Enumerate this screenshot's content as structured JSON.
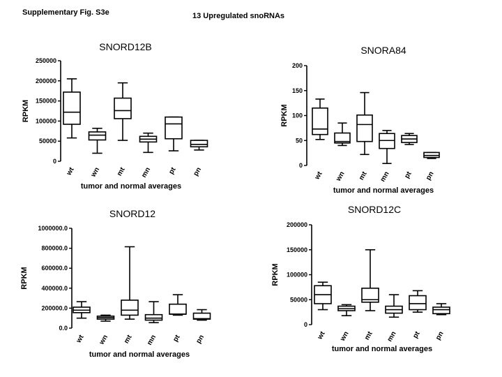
{
  "figure_label": "Supplementary Fig. S3e",
  "heading": "13  Upregulated snoRNAs",
  "chart_data": [
    {
      "type": "box",
      "title": "SNORD12B",
      "xlabel": "tumor and normal averages",
      "ylabel": "RPKM",
      "ylim": [
        0,
        250000
      ],
      "yticks": [
        "0",
        "50000",
        "100000",
        "150000",
        "200000",
        "250000"
      ],
      "categories": [
        "wt",
        "wn",
        "mt",
        "mn",
        "pt",
        "pn"
      ],
      "boxes": [
        {
          "min": 58000,
          "q1": 92000,
          "median": 122000,
          "q3": 172000,
          "max": 205000
        },
        {
          "min": 20000,
          "q1": 53000,
          "median": 65000,
          "q3": 73000,
          "max": 82000
        },
        {
          "min": 52000,
          "q1": 106000,
          "median": 126000,
          "q3": 157000,
          "max": 195000
        },
        {
          "min": 22000,
          "q1": 48000,
          "median": 55000,
          "q3": 62000,
          "max": 70000
        },
        {
          "min": 26000,
          "q1": 56000,
          "median": 93000,
          "q3": 110000,
          "max": 110000
        },
        {
          "min": 28000,
          "q1": 36000,
          "median": 42000,
          "q3": 52000,
          "max": 52000
        }
      ]
    },
    {
      "type": "box",
      "title": "SNORA84",
      "xlabel": "tumor and normal averages",
      "ylabel": "RPKM",
      "ylim": [
        0,
        200
      ],
      "yticks": [
        "0",
        "50",
        "100",
        "150",
        "200"
      ],
      "categories": [
        "wt",
        "wn",
        "mt",
        "mn",
        "pt",
        "pn"
      ],
      "boxes": [
        {
          "min": 52,
          "q1": 62,
          "median": 73,
          "q3": 115,
          "max": 133
        },
        {
          "min": 40,
          "q1": 45,
          "median": 48,
          "q3": 65,
          "max": 85
        },
        {
          "min": 22,
          "q1": 48,
          "median": 82,
          "q3": 101,
          "max": 146
        },
        {
          "min": 4,
          "q1": 34,
          "median": 50,
          "q3": 64,
          "max": 70
        },
        {
          "min": 42,
          "q1": 46,
          "median": 53,
          "q3": 60,
          "max": 64
        },
        {
          "min": 14,
          "q1": 16,
          "median": 20,
          "q3": 26,
          "max": 26
        }
      ]
    },
    {
      "type": "box",
      "title": "SNORD12",
      "xlabel": "tumor and normal averages",
      "ylabel": "RPKM",
      "ylim": [
        0,
        1000000
      ],
      "yticks": [
        "0.0",
        "200000.0",
        "400000.0",
        "600000.0",
        "800000.0",
        "1000000.0"
      ],
      "categories": [
        "wt",
        "wn",
        "mt",
        "mn",
        "pt",
        "pn"
      ],
      "boxes": [
        {
          "min": 100000,
          "q1": 155000,
          "median": 180000,
          "q3": 210000,
          "max": 265000
        },
        {
          "min": 70000,
          "q1": 90000,
          "median": 105000,
          "q3": 120000,
          "max": 130000
        },
        {
          "min": 90000,
          "q1": 130000,
          "median": 180000,
          "q3": 280000,
          "max": 815000
        },
        {
          "min": 55000,
          "q1": 80000,
          "median": 100000,
          "q3": 135000,
          "max": 265000
        },
        {
          "min": 130000,
          "q1": 140000,
          "median": 140000,
          "q3": 240000,
          "max": 335000
        },
        {
          "min": 80000,
          "q1": 90000,
          "median": 95000,
          "q3": 150000,
          "max": 185000
        }
      ]
    },
    {
      "type": "box",
      "title": "SNORD12C",
      "xlabel": "tumor and normal averages",
      "ylabel": "RPKM",
      "ylim": [
        0,
        200000
      ],
      "yticks": [
        "0",
        "50000",
        "100000",
        "150000",
        "200000"
      ],
      "categories": [
        "wt",
        "wn",
        "mt",
        "mn",
        "pt",
        "pn"
      ],
      "boxes": [
        {
          "min": 30000,
          "q1": 42000,
          "median": 60000,
          "q3": 78000,
          "max": 85000
        },
        {
          "min": 18000,
          "q1": 28000,
          "median": 32000,
          "q3": 37000,
          "max": 40000
        },
        {
          "min": 28000,
          "q1": 45000,
          "median": 50000,
          "q3": 73000,
          "max": 150000
        },
        {
          "min": 15000,
          "q1": 23000,
          "median": 30000,
          "q3": 37000,
          "max": 60000
        },
        {
          "min": 25000,
          "q1": 30000,
          "median": 42000,
          "q3": 58000,
          "max": 68000
        },
        {
          "min": 20000,
          "q1": 22000,
          "median": 30000,
          "q3": 35000,
          "max": 42000
        }
      ]
    }
  ]
}
